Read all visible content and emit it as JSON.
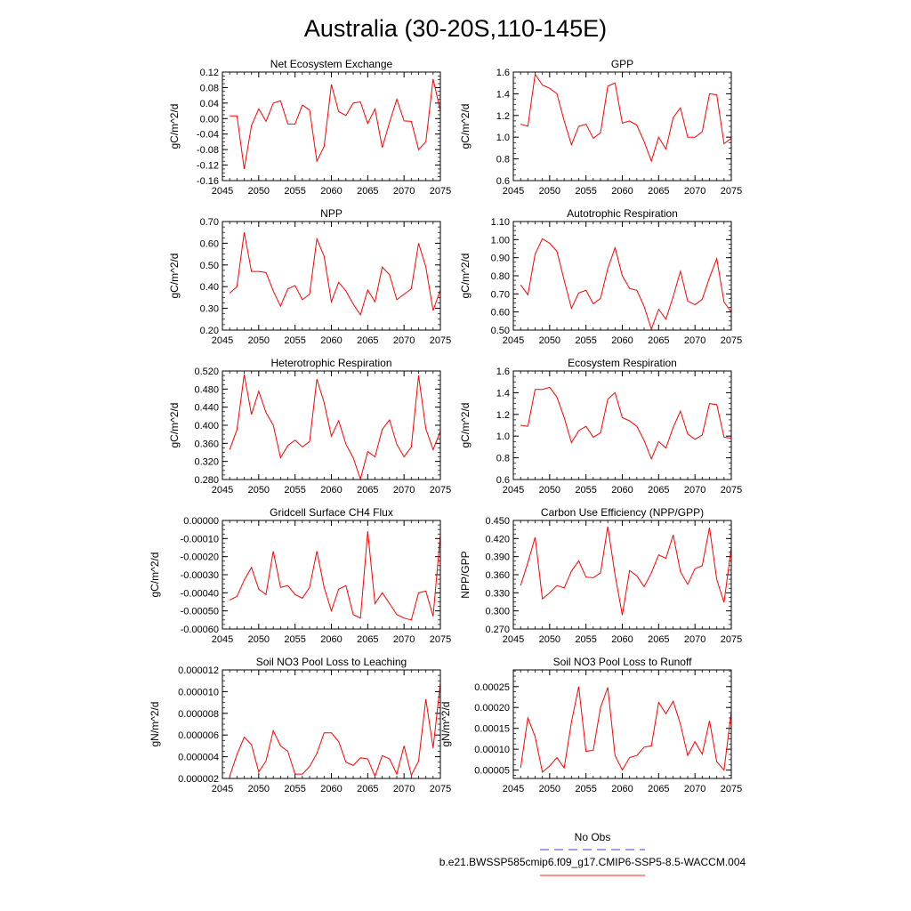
{
  "title": "Australia (30-20S,110-145E)",
  "legend": {
    "items": [
      {
        "label": "No Obs",
        "color": "#6666ee",
        "dash": "dashed"
      },
      {
        "label": "b.e21.BWSSP585cmip6.f09_g17.CMIP6-SSP5-8.5-WACCM.004",
        "color": "#ff4d4d",
        "dash": "solid"
      }
    ]
  },
  "chart_data": [
    {
      "type": "line",
      "title": "Net Ecosystem Exchange",
      "ylabel": "gC/m^2/d",
      "xlim": [
        2045,
        2075
      ],
      "ylim": [
        -0.16,
        0.12
      ],
      "xticks": [
        "2045",
        "2050",
        "2055",
        "2060",
        "2065",
        "2070",
        "2075"
      ],
      "yticks": [
        "0.12",
        "0.08",
        "0.04",
        "0.00",
        "-0.04",
        "-0.08",
        "-0.12",
        "-0.16"
      ],
      "yticks_values": [
        0.12,
        0.08,
        0.04,
        0.0,
        -0.04,
        -0.08,
        -0.12,
        -0.16
      ],
      "x": [
        2046,
        2047,
        2048,
        2049,
        2050,
        2051,
        2052,
        2053,
        2054,
        2055,
        2056,
        2057,
        2058,
        2059,
        2060,
        2061,
        2062,
        2063,
        2064,
        2065,
        2066,
        2067,
        2068,
        2069,
        2070,
        2071,
        2072,
        2073,
        2074,
        2075
      ],
      "series": [
        {
          "color": "#ff0000",
          "values": [
            0.007,
            0.007,
            -0.13,
            -0.018,
            0.025,
            -0.007,
            0.04,
            0.046,
            -0.014,
            -0.014,
            0.035,
            0.022,
            -0.11,
            -0.072,
            0.088,
            0.018,
            0.008,
            0.04,
            0.043,
            -0.013,
            0.025,
            -0.075,
            -0.01,
            0.05,
            -0.006,
            -0.007,
            -0.08,
            -0.06,
            0.102,
            0.02
          ]
        }
      ]
    },
    {
      "type": "line",
      "title": "GPP",
      "ylabel": "gC/m^2/d",
      "xlim": [
        2045,
        2075
      ],
      "ylim": [
        0.6,
        1.6
      ],
      "xticks": [
        "2045",
        "2050",
        "2055",
        "2060",
        "2065",
        "2070",
        "2075"
      ],
      "yticks": [
        "1.6",
        "1.4",
        "1.2",
        "1.0",
        "0.8",
        "0.6"
      ],
      "yticks_values": [
        1.6,
        1.4,
        1.2,
        1.0,
        0.8,
        0.6
      ],
      "x": [
        2046,
        2047,
        2048,
        2049,
        2050,
        2051,
        2052,
        2053,
        2054,
        2055,
        2056,
        2057,
        2058,
        2059,
        2060,
        2061,
        2062,
        2063,
        2064,
        2065,
        2066,
        2067,
        2068,
        2069,
        2070,
        2071,
        2072,
        2073,
        2074,
        2075
      ],
      "series": [
        {
          "color": "#ff0000",
          "values": [
            1.12,
            1.1,
            1.58,
            1.48,
            1.45,
            1.4,
            1.15,
            0.93,
            1.1,
            1.12,
            0.99,
            1.04,
            1.47,
            1.5,
            1.13,
            1.15,
            1.11,
            0.96,
            0.78,
            1.0,
            0.89,
            1.18,
            1.27,
            1.0,
            1.0,
            1.05,
            1.4,
            1.39,
            0.94,
            0.99
          ]
        }
      ]
    },
    {
      "type": "line",
      "title": "NPP",
      "ylabel": "gC/m^2/d",
      "xlim": [
        2045,
        2075
      ],
      "ylim": [
        0.2,
        0.7
      ],
      "xticks": [
        "2045",
        "2050",
        "2055",
        "2060",
        "2065",
        "2070",
        "2075"
      ],
      "yticks": [
        "0.70",
        "0.60",
        "0.50",
        "0.40",
        "0.30",
        "0.20"
      ],
      "yticks_values": [
        0.7,
        0.6,
        0.5,
        0.4,
        0.3,
        0.2
      ],
      "x": [
        2046,
        2047,
        2048,
        2049,
        2050,
        2051,
        2052,
        2053,
        2054,
        2055,
        2056,
        2057,
        2058,
        2059,
        2060,
        2061,
        2062,
        2063,
        2064,
        2065,
        2066,
        2067,
        2068,
        2069,
        2070,
        2071,
        2072,
        2073,
        2074,
        2075
      ],
      "series": [
        {
          "color": "#ff0000",
          "values": [
            0.37,
            0.4,
            0.65,
            0.47,
            0.47,
            0.465,
            0.38,
            0.31,
            0.39,
            0.405,
            0.34,
            0.365,
            0.62,
            0.54,
            0.33,
            0.42,
            0.38,
            0.32,
            0.27,
            0.385,
            0.33,
            0.49,
            0.455,
            0.34,
            0.365,
            0.39,
            0.6,
            0.49,
            0.29,
            0.385
          ]
        }
      ]
    },
    {
      "type": "line",
      "title": "Autotrophic Respiration",
      "ylabel": "gC/m^2/d",
      "xlim": [
        2045,
        2075
      ],
      "ylim": [
        0.5,
        1.1
      ],
      "xticks": [
        "2045",
        "2050",
        "2055",
        "2060",
        "2065",
        "2070",
        "2075"
      ],
      "yticks": [
        "1.10",
        "1.00",
        "0.90",
        "0.80",
        "0.70",
        "0.60",
        "0.50"
      ],
      "yticks_values": [
        1.1,
        1.0,
        0.9,
        0.8,
        0.7,
        0.6,
        0.5
      ],
      "x": [
        2046,
        2047,
        2048,
        2049,
        2050,
        2051,
        2052,
        2053,
        2054,
        2055,
        2056,
        2057,
        2058,
        2059,
        2060,
        2061,
        2062,
        2063,
        2064,
        2065,
        2066,
        2067,
        2068,
        2069,
        2070,
        2071,
        2072,
        2073,
        2074,
        2075
      ],
      "series": [
        {
          "color": "#ff0000",
          "values": [
            0.75,
            0.695,
            0.92,
            1.005,
            0.98,
            0.935,
            0.775,
            0.62,
            0.705,
            0.72,
            0.645,
            0.675,
            0.84,
            0.955,
            0.8,
            0.73,
            0.72,
            0.63,
            0.505,
            0.615,
            0.56,
            0.685,
            0.825,
            0.66,
            0.64,
            0.67,
            0.79,
            0.895,
            0.655,
            0.6
          ]
        }
      ]
    },
    {
      "type": "line",
      "title": "Heterotrophic Respiration",
      "ylabel": "gC/m^2/d",
      "xlim": [
        2045,
        2075
      ],
      "ylim": [
        0.28,
        0.52
      ],
      "xticks": [
        "2045",
        "2050",
        "2055",
        "2060",
        "2065",
        "2070",
        "2075"
      ],
      "yticks": [
        "0.520",
        "0.480",
        "0.440",
        "0.400",
        "0.360",
        "0.320",
        "0.280"
      ],
      "yticks_values": [
        0.52,
        0.48,
        0.44,
        0.4,
        0.36,
        0.32,
        0.28
      ],
      "x": [
        2046,
        2047,
        2048,
        2049,
        2050,
        2051,
        2052,
        2053,
        2054,
        2055,
        2056,
        2057,
        2058,
        2059,
        2060,
        2061,
        2062,
        2063,
        2064,
        2065,
        2066,
        2067,
        2068,
        2069,
        2070,
        2071,
        2072,
        2073,
        2074,
        2075
      ],
      "series": [
        {
          "color": "#ff0000",
          "values": [
            0.346,
            0.39,
            0.512,
            0.424,
            0.475,
            0.428,
            0.4,
            0.328,
            0.355,
            0.367,
            0.352,
            0.364,
            0.502,
            0.45,
            0.376,
            0.41,
            0.358,
            0.328,
            0.281,
            0.342,
            0.33,
            0.391,
            0.412,
            0.358,
            0.33,
            0.352,
            0.51,
            0.392,
            0.346,
            0.387
          ]
        }
      ]
    },
    {
      "type": "line",
      "title": "Ecosystem Respiration",
      "ylabel": "gC/m^2/d",
      "xlim": [
        2045,
        2075
      ],
      "ylim": [
        0.6,
        1.6
      ],
      "xticks": [
        "2045",
        "2050",
        "2055",
        "2060",
        "2065",
        "2070",
        "2075"
      ],
      "yticks": [
        "1.6",
        "1.4",
        "1.2",
        "1.0",
        "0.8",
        "0.6"
      ],
      "yticks_values": [
        1.6,
        1.4,
        1.2,
        1.0,
        0.8,
        0.6
      ],
      "x": [
        2046,
        2047,
        2048,
        2049,
        2050,
        2051,
        2052,
        2053,
        2054,
        2055,
        2056,
        2057,
        2058,
        2059,
        2060,
        2061,
        2062,
        2063,
        2064,
        2065,
        2066,
        2067,
        2068,
        2069,
        2070,
        2071,
        2072,
        2073,
        2074,
        2075
      ],
      "series": [
        {
          "color": "#ff0000",
          "values": [
            1.1,
            1.09,
            1.43,
            1.43,
            1.45,
            1.36,
            1.17,
            0.94,
            1.05,
            1.09,
            0.99,
            1.03,
            1.34,
            1.4,
            1.17,
            1.14,
            1.09,
            0.96,
            0.79,
            0.95,
            0.89,
            1.08,
            1.23,
            1.02,
            0.97,
            1.01,
            1.3,
            1.29,
            0.99,
            0.98
          ]
        }
      ]
    },
    {
      "type": "line",
      "title": "Gridcell Surface CH4 Flux",
      "ylabel": "gC/m^2/d",
      "xlim": [
        2045,
        2075
      ],
      "ylim": [
        -0.0006,
        0.0
      ],
      "xticks": [
        "2045",
        "2050",
        "2055",
        "2060",
        "2065",
        "2070",
        "2075"
      ],
      "yticks": [
        "0.00000",
        "-0.00010",
        "-0.00020",
        "-0.00030",
        "-0.00040",
        "-0.00050",
        "-0.00060"
      ],
      "yticks_values": [
        0.0,
        -0.0001,
        -0.0002,
        -0.0003,
        -0.0004,
        -0.0005,
        -0.0006
      ],
      "x": [
        2046,
        2047,
        2048,
        2049,
        2050,
        2051,
        2052,
        2053,
        2054,
        2055,
        2056,
        2057,
        2058,
        2059,
        2060,
        2061,
        2062,
        2063,
        2064,
        2065,
        2066,
        2067,
        2068,
        2069,
        2070,
        2071,
        2072,
        2073,
        2074,
        2075
      ],
      "series": [
        {
          "color": "#ff0000",
          "values": [
            -0.00044,
            -0.00042,
            -0.00033,
            -0.00026,
            -0.00038,
            -0.00041,
            -0.00017,
            -0.00037,
            -0.00036,
            -0.00041,
            -0.00043,
            -0.00037,
            -0.00017,
            -0.00037,
            -0.0005,
            -0.00038,
            -0.00036,
            -0.00052,
            -0.00054,
            -6e-05,
            -0.00046,
            -0.0004,
            -0.00046,
            -0.00052,
            -0.00054,
            -0.00055,
            -0.0004,
            -0.00039,
            -0.00053,
            -8e-05
          ]
        }
      ]
    },
    {
      "type": "line",
      "title": "Carbon Use Efficiency (NPP/GPP)",
      "ylabel": "NPP/GPP",
      "xlim": [
        2045,
        2075
      ],
      "ylim": [
        0.27,
        0.45
      ],
      "xticks": [
        "2045",
        "2050",
        "2055",
        "2060",
        "2065",
        "2070",
        "2075"
      ],
      "yticks": [
        "0.450",
        "0.420",
        "0.390",
        "0.360",
        "0.330",
        "0.300",
        "0.270"
      ],
      "yticks_values": [
        0.45,
        0.42,
        0.39,
        0.36,
        0.33,
        0.3,
        0.27
      ],
      "x": [
        2046,
        2047,
        2048,
        2049,
        2050,
        2051,
        2052,
        2053,
        2054,
        2055,
        2056,
        2057,
        2058,
        2059,
        2060,
        2061,
        2062,
        2063,
        2064,
        2065,
        2066,
        2067,
        2068,
        2069,
        2070,
        2071,
        2072,
        2073,
        2074,
        2075
      ],
      "series": [
        {
          "color": "#ff0000",
          "values": [
            0.342,
            0.38,
            0.422,
            0.32,
            0.33,
            0.342,
            0.338,
            0.366,
            0.383,
            0.356,
            0.355,
            0.363,
            0.44,
            0.36,
            0.293,
            0.367,
            0.358,
            0.34,
            0.363,
            0.393,
            0.387,
            0.426,
            0.365,
            0.344,
            0.37,
            0.375,
            0.438,
            0.352,
            0.314,
            0.405
          ]
        }
      ]
    },
    {
      "type": "line",
      "title": "Soil NO3 Pool Loss to Leaching",
      "ylabel": "gN/m^2/d",
      "xlim": [
        2045,
        2075
      ],
      "ylim": [
        2e-06,
        1.2e-05
      ],
      "xticks": [
        "2045",
        "2050",
        "2055",
        "2060",
        "2065",
        "2070",
        "2075"
      ],
      "yticks": [
        "0.000012",
        "0.000010",
        "0.000008",
        "0.000006",
        "0.000004",
        "0.000002"
      ],
      "yticks_values": [
        1.2e-05,
        1e-05,
        8e-06,
        6e-06,
        4e-06,
        2e-06
      ],
      "x": [
        2046,
        2047,
        2048,
        2049,
        2050,
        2051,
        2052,
        2053,
        2054,
        2055,
        2056,
        2057,
        2058,
        2059,
        2060,
        2061,
        2062,
        2063,
        2064,
        2065,
        2066,
        2067,
        2068,
        2069,
        2070,
        2071,
        2072,
        2073,
        2074,
        2075
      ],
      "series": [
        {
          "color": "#ff0000",
          "values": [
            2.2e-06,
            4.2e-06,
            5.8e-06,
            5.1e-06,
            2.6e-06,
            3.6e-06,
            6.4e-06,
            5e-06,
            4.5e-06,
            2.4e-06,
            2.4e-06,
            3.1e-06,
            4.3e-06,
            6.2e-06,
            6.2e-06,
            5.4e-06,
            3.5e-06,
            3.2e-06,
            3.9e-06,
            3.8e-06,
            2.2e-06,
            4.1e-06,
            3.8e-06,
            2.4e-06,
            5e-06,
            2.3e-06,
            3.6e-06,
            9.3e-06,
            4.8e-06,
            1.08e-05
          ]
        }
      ]
    },
    {
      "type": "line",
      "title": "Soil NO3 Pool Loss to Runoff",
      "ylabel": "gN/m^2/d",
      "xlim": [
        2045,
        2075
      ],
      "ylim": [
        3e-05,
        0.00029
      ],
      "xticks": [
        "2045",
        "2050",
        "2055",
        "2060",
        "2065",
        "2070",
        "2075"
      ],
      "yticks": [
        "0.00025",
        "0.00020",
        "0.00015",
        "0.00010",
        "0.00005"
      ],
      "yticks_values": [
        0.00025,
        0.0002,
        0.00015,
        0.0001,
        5e-05
      ],
      "x": [
        2046,
        2047,
        2048,
        2049,
        2050,
        2051,
        2052,
        2053,
        2054,
        2055,
        2056,
        2057,
        2058,
        2059,
        2060,
        2061,
        2062,
        2063,
        2064,
        2065,
        2066,
        2067,
        2068,
        2069,
        2070,
        2071,
        2072,
        2073,
        2074,
        2075
      ],
      "series": [
        {
          "color": "#ff0000",
          "values": [
            5.5e-05,
            0.000175,
            0.00013,
            4.5e-05,
            6e-05,
            8e-05,
            5.5e-05,
            0.000165,
            0.00025,
            9.5e-05,
            9.75e-05,
            0.0002,
            0.000248,
            8.5e-05,
            5e-05,
            8e-05,
            8.5e-05,
            0.000105,
            0.000108,
            0.000212,
            0.000185,
            0.000215,
            0.00016,
            8.5e-05,
            0.000118,
            8.8e-05,
            0.000168,
            7e-05,
            5e-05,
            0.00019
          ]
        }
      ]
    }
  ]
}
